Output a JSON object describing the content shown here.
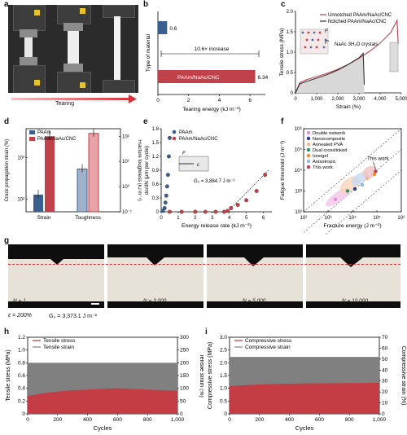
{
  "panels": {
    "a": "a",
    "b": "b",
    "c": "c",
    "d": "d",
    "e": "e",
    "f": "f",
    "g": "g",
    "h": "h",
    "i": "i"
  },
  "panel_a": {
    "arrow_label": "Tearing"
  },
  "colors": {
    "paam": "#3a5f8f",
    "composite": "#c0414a",
    "composite_light": "#e9a2a6",
    "paam_light": "#9fb1cb",
    "gray": "#808080",
    "fill_red": "#c43c44"
  },
  "chart_data": [
    {
      "id": "b",
      "type": "bar",
      "categories": [
        "PAAm",
        "PAAm/NaAc/CNC"
      ],
      "values": [
        0.6,
        6.34
      ],
      "value_labels": [
        "0.6",
        "6.34"
      ],
      "ylabel": "Type of material",
      "xlabel": "Tearing energy (kJ m⁻²)",
      "xlim": [
        0,
        7
      ],
      "xticks": [
        "0",
        "2",
        "4",
        "6"
      ],
      "annotation": "10.6× increase",
      "bar_text": "PAAm/NaAc/CNC"
    },
    {
      "id": "c",
      "type": "line",
      "xlabel": "Strain (%)",
      "ylabel": "Tensile stress (MPa)",
      "xlim": [
        0,
        5000
      ],
      "ylim": [
        0,
        2.0
      ],
      "xticks": [
        "0",
        "1,000",
        "2,000",
        "3,000",
        "4,000",
        "5,000"
      ],
      "yticks": [
        "0",
        "0.5",
        "1.0",
        "1.5",
        "2.0"
      ],
      "series": [
        {
          "name": "Unnotched PAAm/NaAc/CNC",
          "x": [
            0,
            200,
            500,
            1000,
            1500,
            2000,
            2500,
            3000,
            3500,
            4000,
            4500,
            4800,
            4850
          ],
          "y": [
            0,
            0.25,
            0.32,
            0.4,
            0.48,
            0.58,
            0.7,
            0.85,
            1.02,
            1.22,
            1.48,
            1.78,
            1.2
          ]
        },
        {
          "name": "Notched PAAm/NaAc/CNC",
          "x": [
            0,
            200,
            500,
            1000,
            1500,
            2000,
            2500,
            3000,
            3200,
            3250
          ],
          "y": [
            0,
            0.22,
            0.28,
            0.36,
            0.45,
            0.56,
            0.7,
            0.86,
            0.97,
            0.2
          ]
        }
      ],
      "inset_labels": {
        "f": "F",
        "f2": "F'",
        "crystal": "NaAc·3H₂O crystals"
      }
    },
    {
      "id": "d",
      "type": "bar",
      "categories": [
        "Strain",
        "Toughness"
      ],
      "series": [
        {
          "name": "PAAm",
          "values": [
            130,
            5
          ]
        },
        {
          "name": "PAAm/NaAc/CNC",
          "values": [
            3300,
            130
          ]
        }
      ],
      "ylabel_left": "Crack propagation strain (%)",
      "ylabel_right": "Fracture toughness (kJ m⁻²)",
      "yticks_left": [
        "10²",
        "10³"
      ],
      "yticks_right": [
        "10⁻¹",
        "10⁰",
        "10¹",
        "10²"
      ]
    },
    {
      "id": "e",
      "type": "scatter",
      "xlabel": "Energy release rate (kJ m⁻²)",
      "ylabel": "dc/dN (μm per cycle)",
      "xlim": [
        0,
        6.5
      ],
      "ylim": [
        0,
        1.8
      ],
      "xticks": [
        "0",
        "1",
        "2",
        "3",
        "4",
        "5",
        "6"
      ],
      "yticks": [
        "0",
        "0.3",
        "0.6",
        "0.9",
        "1.2",
        "1.5",
        "1.8"
      ],
      "series": [
        {
          "name": "PAAm",
          "x": [
            0.1,
            0.2,
            0.25,
            0.3,
            0.35,
            0.4,
            0.45,
            0.5
          ],
          "y": [
            0.02,
            0.08,
            0.2,
            0.35,
            0.55,
            0.8,
            1.2,
            1.6
          ]
        },
        {
          "name": "PAAm/NaAc/CNC",
          "x": [
            0.5,
            1.2,
            2.0,
            2.6,
            3.2,
            3.7,
            3.9,
            4.1,
            4.5,
            5.0,
            5.6,
            6.1
          ],
          "y": [
            0,
            0,
            0,
            0,
            0,
            0,
            0.02,
            0.08,
            0.15,
            0.25,
            0.45,
            0.8
          ]
        }
      ],
      "annotation": "G₀ = 3,884.7 J m⁻²",
      "inset_labels": {
        "f": "F",
        "c": "c"
      }
    },
    {
      "id": "f",
      "type": "scatter",
      "xlabel": "Fracture energy (J m⁻²)",
      "ylabel": "Fatigue threshold (J m⁻²)",
      "xticks": [
        "10²",
        "10³",
        "10⁴",
        "10⁵",
        "10⁶"
      ],
      "yticks": [
        "10²",
        "10³",
        "10⁴",
        "10⁵",
        "10⁶"
      ],
      "series": [
        {
          "name": "Double network",
          "color": "#e58fd3"
        },
        {
          "name": "Nanocomposite",
          "color": "#2f3b94"
        },
        {
          "name": "Annealed PVA",
          "color": "#f3b68c"
        },
        {
          "name": "Dual crosslinked",
          "color": "#2d8f6e"
        },
        {
          "name": "Ionogel",
          "color": "#f28b32"
        },
        {
          "name": "Anisotropic",
          "color": "#8fb6e3"
        },
        {
          "name": "This work",
          "color": "#c0414a"
        }
      ],
      "annotation": "This work"
    },
    {
      "id": "h",
      "type": "area",
      "xlabel": "Cycles",
      "ylabel_left": "Tensile stress (MPa)",
      "ylabel_right": "Tensile strain (%)",
      "xticks": [
        "0",
        "200",
        "400",
        "600",
        "800",
        "1,000"
      ],
      "yticks_left": [
        "0",
        "0.2",
        "0.4",
        "0.6",
        "0.8",
        "1.0",
        "1.2"
      ],
      "yticks_right": [
        "0",
        "50",
        "100",
        "150",
        "200",
        "250",
        "300"
      ],
      "series": [
        {
          "name": "Tensile stress",
          "x": [
            0,
            100,
            200,
            300,
            400,
            500,
            600,
            700,
            800,
            900,
            1000
          ],
          "y": [
            0.28,
            0.32,
            0.35,
            0.37,
            0.38,
            0.39,
            0.4,
            0.39,
            0.38,
            0.37,
            0.36
          ]
        },
        {
          "name": "Tensile strain",
          "x": [
            0,
            1000
          ],
          "y": [
            200,
            200
          ]
        }
      ]
    },
    {
      "id": "i",
      "type": "area",
      "xlabel": "Cycles",
      "ylabel_left": "Compressive stress (MPa)",
      "ylabel_right": "Compressive strain (%)",
      "xticks": [
        "0",
        "200",
        "400",
        "600",
        "800",
        "1,000"
      ],
      "yticks_left": [
        "0",
        "0.5",
        "1.0",
        "1.5",
        "2.0",
        "2.5",
        "3.0"
      ],
      "yticks_right": [
        "0",
        "10",
        "20",
        "30",
        "40",
        "50",
        "60",
        "70"
      ],
      "series": [
        {
          "name": "Compressive stress",
          "x": [
            0,
            100,
            200,
            300,
            400,
            500,
            600,
            700,
            800,
            900,
            1000
          ],
          "y": [
            1.08,
            1.12,
            1.15,
            1.17,
            1.18,
            1.19,
            1.2,
            1.2,
            1.21,
            1.21,
            1.22
          ]
        },
        {
          "name": "Compressive strain",
          "x": [
            0,
            1000
          ],
          "y": [
            52,
            52
          ]
        }
      ]
    }
  ],
  "panel_g": {
    "labels": [
      "N = 1",
      "N = 3,000",
      "N = 5,000",
      "N = 10,000"
    ],
    "eps": "ε = 200%",
    "g0": "G₀ = 3,373.1 J m⁻²"
  }
}
